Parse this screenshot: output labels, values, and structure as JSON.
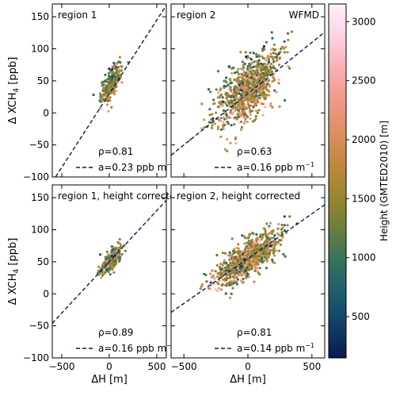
{
  "colorbar": {
    "label": "Height (GMTED2010) [m]",
    "ticks": [
      500,
      1000,
      1500,
      2000,
      2500,
      3000
    ],
    "range": [
      150,
      3150
    ],
    "colormap": [
      "#0b1a4a",
      "#123d68",
      "#1d5d6e",
      "#34725c",
      "#6a7f3c",
      "#9a8530",
      "#c0883c",
      "#dc8e63",
      "#ef9a8a",
      "#f8b0b5",
      "#fcd2e6",
      "#fff0fb"
    ]
  },
  "chart_data": [
    {
      "type": "scatter",
      "panel": "top-left",
      "label": "region 1",
      "tag": "",
      "rho_text": "ρ=0.81",
      "slope_text_prefix": "a=0.23 ppb m",
      "fit": {
        "slope": 0.23,
        "intercept": 30
      },
      "cluster": {
        "cx": 20,
        "cy": 45,
        "sx": 55,
        "sy": 10,
        "n": 260,
        "hmean": 1400,
        "hspread": 700
      },
      "xlim": [
        -600,
        600
      ],
      "ylim": [
        -100,
        170
      ],
      "ylabel": "Δ XCH4 [ppb]",
      "xlabel": ""
    },
    {
      "type": "scatter",
      "panel": "top-right",
      "label": "region 2",
      "tag": "WFMD",
      "rho_text": "ρ=0.63",
      "slope_text_prefix": "a=0.16 ppb m",
      "fit": {
        "slope": 0.16,
        "intercept": 30
      },
      "cluster": {
        "cx": 0,
        "cy": 35,
        "sx": 120,
        "sy": 22,
        "n": 900,
        "hmean": 1600,
        "hspread": 900
      },
      "xlim": [
        -600,
        600
      ],
      "ylim": [
        -100,
        170
      ],
      "ylabel": "",
      "xlabel": ""
    },
    {
      "type": "scatter",
      "panel": "bottom-left",
      "label": "region 1, height corrected",
      "tag": "",
      "rho_text": "ρ=0.89",
      "slope_text_prefix": "a=0.16 ppb m",
      "fit": {
        "slope": 0.16,
        "intercept": 50
      },
      "cluster": {
        "cx": 20,
        "cy": 53,
        "sx": 55,
        "sy": 7,
        "n": 260,
        "hmean": 1400,
        "hspread": 700
      },
      "xlim": [
        -600,
        600
      ],
      "ylim": [
        -100,
        170
      ],
      "ylabel": "Δ XCH4 [ppb]",
      "xlabel": "ΔH [m]"
    },
    {
      "type": "scatter",
      "panel": "bottom-right",
      "label": "region 2, height corrected",
      "tag": "",
      "rho_text": "ρ=0.81",
      "slope_text_prefix": "a=0.14 ppb m",
      "fit": {
        "slope": 0.14,
        "intercept": 55
      },
      "cluster": {
        "cx": 0,
        "cy": 55,
        "sx": 120,
        "sy": 14,
        "n": 900,
        "hmean": 1600,
        "hspread": 900
      },
      "xlim": [
        -600,
        600
      ],
      "ylim": [
        -100,
        170
      ],
      "ylabel": "",
      "xlabel": "ΔH [m]"
    }
  ],
  "axes": {
    "xticks": [
      -500,
      0,
      500
    ],
    "yticks": [
      -100,
      -50,
      0,
      50,
      100,
      150
    ],
    "slope_unit_superscript": "−1"
  }
}
